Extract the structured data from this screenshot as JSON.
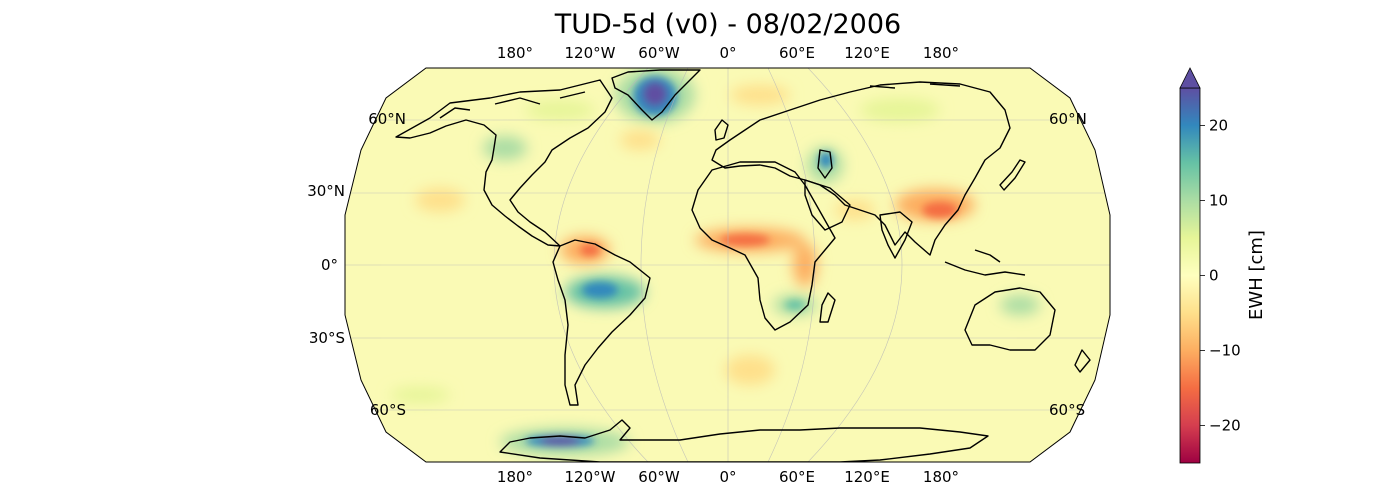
{
  "title": "TUD-5d (v0) - 08/02/2006",
  "map": {
    "projection": "Robinson",
    "top_lon_labels": [
      "180°",
      "120°W",
      "60°W",
      "0°",
      "60°E",
      "120°E",
      "180°"
    ],
    "bottom_lon_labels": [
      "180°",
      "120°W",
      "60°W",
      "0°",
      "60°E",
      "120°E",
      "180°"
    ],
    "left_lat_labels": [
      "60°N",
      "30°N",
      "0°",
      "30°S",
      "60°S"
    ],
    "right_lat_labels": [
      "60°N",
      "60°S"
    ],
    "background_color": "#fafab5",
    "anomalies": [
      {
        "region": "Greenland",
        "sign": "positive",
        "level": "strong"
      },
      {
        "region": "Antarctic Peninsula",
        "sign": "positive",
        "level": "strong"
      },
      {
        "region": "Amazon Basin",
        "sign": "positive",
        "level": "moderate"
      },
      {
        "region": "Caspian region",
        "sign": "positive",
        "level": "moderate"
      },
      {
        "region": "Southern Africa",
        "sign": "positive",
        "level": "moderate"
      },
      {
        "region": "Northern Australia",
        "sign": "positive",
        "level": "weak"
      },
      {
        "region": "Sahel",
        "sign": "negative",
        "level": "moderate"
      },
      {
        "region": "East Africa",
        "sign": "negative",
        "level": "moderate"
      },
      {
        "region": "Northern South America",
        "sign": "negative",
        "level": "moderate"
      },
      {
        "region": "China",
        "sign": "negative",
        "level": "moderate"
      }
    ]
  },
  "colorbar": {
    "label": "EWH [cm]",
    "ticks": [
      "20",
      "10",
      "0",
      "−10",
      "−20"
    ],
    "tick_values": [
      20,
      10,
      0,
      -10,
      -20
    ],
    "min": -25,
    "max": 25,
    "extend": "max",
    "colormap": "Spectral",
    "colors": [
      "#9e0142",
      "#d53e4f",
      "#f46d43",
      "#fdae61",
      "#fee08b",
      "#ffffbf",
      "#e6f598",
      "#abdda4",
      "#66c2a5",
      "#3288bd",
      "#5e4fa2"
    ]
  }
}
